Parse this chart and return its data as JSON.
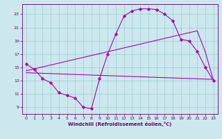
{
  "title": "",
  "xlabel": "Windchill (Refroidissement éolien,°C)",
  "ylabel": "",
  "bg_color": "#cce8ee",
  "line_color": "#aa00aa",
  "grid_color": "#99cccc",
  "axis_color": "#660066",
  "tick_color": "#660066",
  "label_color": "#660066",
  "xlim": [
    -0.5,
    23.5
  ],
  "ylim": [
    8.0,
    24.5
  ],
  "xticks": [
    0,
    1,
    2,
    3,
    4,
    5,
    6,
    7,
    8,
    9,
    10,
    11,
    12,
    13,
    14,
    15,
    16,
    17,
    18,
    19,
    20,
    21,
    22,
    23
  ],
  "yticks": [
    9,
    11,
    13,
    15,
    17,
    19,
    21,
    23
  ],
  "curve1_x": [
    0,
    1,
    2,
    3,
    4,
    5,
    6,
    7,
    8,
    9,
    10,
    11,
    12,
    13,
    14,
    15,
    16,
    17,
    18,
    19,
    20,
    21,
    22,
    23
  ],
  "curve1_y": [
    15.5,
    14.7,
    13.3,
    12.7,
    11.2,
    10.8,
    10.4,
    9.0,
    8.8,
    13.3,
    17.0,
    20.0,
    22.7,
    23.5,
    23.8,
    23.8,
    23.7,
    23.0,
    22.0,
    19.2,
    19.0,
    17.4,
    15.0,
    13.0
  ],
  "curve2_x": [
    0,
    23
  ],
  "curve2_y": [
    14.2,
    13.2
  ],
  "curve3_x": [
    0,
    21,
    22,
    23
  ],
  "curve3_y": [
    14.5,
    20.5,
    17.3,
    13.0
  ],
  "marker_style": "D",
  "marker_size": 1.8,
  "line_width": 0.8,
  "tick_fontsize": 4.5,
  "xlabel_fontsize": 5.0
}
